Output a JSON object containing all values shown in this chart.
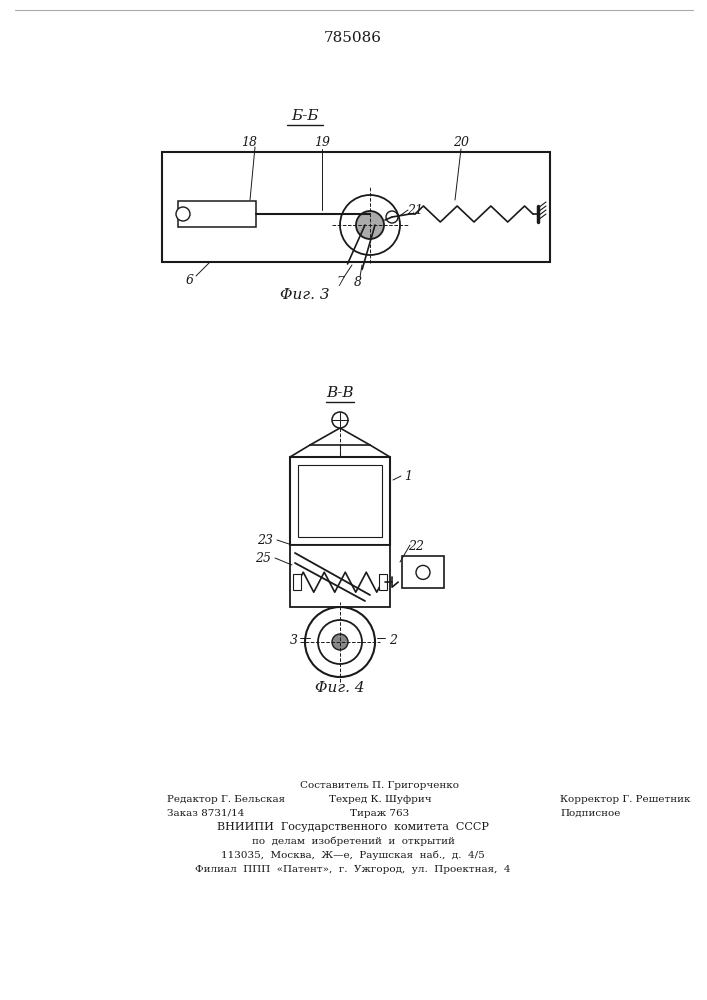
{
  "title_number": "785086",
  "fig3_label": "Б-Б",
  "fig3_caption": "Φиг. 3",
  "fig4_label": "В-В",
  "fig4_caption": "Φиг. 4",
  "bg_color": "#ffffff",
  "line_color": "#1a1a1a",
  "footer": {
    "line1_center": "Составитель П. Григорченко",
    "line2_left": "Редактор Г. Бельская",
    "line2_center": "Техред К. Шуфрич",
    "line2_right": "Корректор Г. Решетник",
    "line3_left": "Заказ 8731/14",
    "line3_center": "Тираж 763",
    "line3_right": "Подписное",
    "line4": "ВНИИПИ  Государственного  комитета  СССР",
    "line5": "по  делам  изобретений  и  открытий",
    "line6": "113035,  Москва,  Ж—е,  Раушская  наб.,  д.  4/5",
    "line7": "Филиал  ППП  «Патент»,  г.  Ужгород,  ул.  Проектная,  4"
  }
}
